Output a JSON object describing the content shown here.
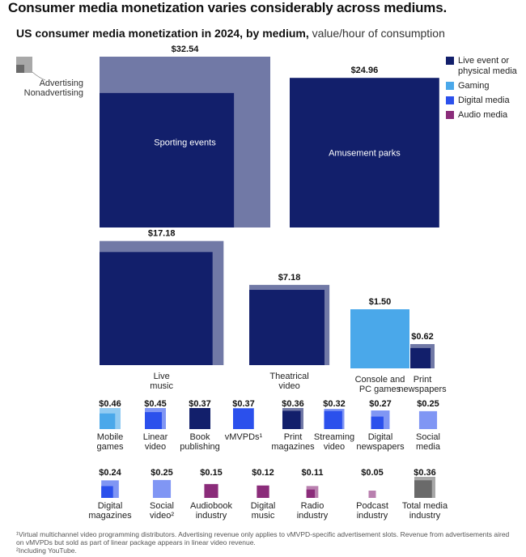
{
  "title": "Consumer media monetization varies considerably across mediums.",
  "subtitle_bold": "US consumer media monetization in 2024, by medium,",
  "subtitle_normal": "value/hour of consumption",
  "colors": {
    "live_event": "#121f6b",
    "gaming": "#4aa8ea",
    "digital_media": "#2b50ec",
    "audio_media": "#8b2c7a",
    "advertising_overlay_opacity": 0.6,
    "key_outer": "#a8a8a8",
    "key_inner": "#6a6a6a"
  },
  "key": {
    "advertising": "Advertising",
    "nonadvertising": "Nonadvertising"
  },
  "legend": [
    {
      "label": "Live event or physical media",
      "color": "#121f6b"
    },
    {
      "label": "Gaming",
      "color": "#4aa8ea"
    },
    {
      "label": "Digital media",
      "color": "#2b50ec"
    },
    {
      "label": "Audio media",
      "color": "#8b2c7a"
    }
  ],
  "chart_data": {
    "type": "proportional-area",
    "unit": "value/hour of consumption",
    "items": [
      {
        "name": "Sporting events",
        "label_lines": [
          "Sporting events"
        ],
        "total": 32.54,
        "value_label": "$32.54",
        "category": "live_event",
        "nonadv_share": 0.62
      },
      {
        "name": "Amusement parks",
        "label_lines": [
          "Amusement parks"
        ],
        "total": 24.96,
        "value_label": "$24.96",
        "category": "live_event",
        "nonadv_share": 1.0
      },
      {
        "name": "Live music",
        "label_lines": [
          "Live",
          "music"
        ],
        "total": 17.18,
        "value_label": "$17.18",
        "category": "live_event",
        "nonadv_share": 0.83
      },
      {
        "name": "Theatrical video",
        "label_lines": [
          "Theatrical",
          "video"
        ],
        "total": 7.18,
        "value_label": "$7.18",
        "category": "live_event",
        "nonadv_share": 0.88
      },
      {
        "name": "Console and PC games",
        "label_lines": [
          "Console and",
          "PC games"
        ],
        "total": 1.5,
        "value_label": "$1.50",
        "category": "gaming",
        "nonadv_share": 1.0
      },
      {
        "name": "Print newspapers",
        "label_lines": [
          "Print",
          "newspapers"
        ],
        "total": 0.62,
        "value_label": "$0.62",
        "category": "live_event",
        "nonadv_share": 0.7
      },
      {
        "name": "Mobile games",
        "label_lines": [
          "Mobile",
          "games"
        ],
        "total": 0.46,
        "value_label": "$0.46",
        "category": "gaming",
        "nonadv_share": 0.55
      },
      {
        "name": "Linear video",
        "label_lines": [
          "Linear",
          "video"
        ],
        "total": 0.45,
        "value_label": "$0.45",
        "category": "digital_media",
        "nonadv_share": 0.65
      },
      {
        "name": "Book publishing",
        "label_lines": [
          "Book",
          "publishing"
        ],
        "total": 0.37,
        "value_label": "$0.37",
        "category": "live_event",
        "nonadv_share": 1.0
      },
      {
        "name": "vMVPDs",
        "label_lines": [
          "vMVPDs¹"
        ],
        "total": 0.37,
        "value_label": "$0.37",
        "category": "digital_media",
        "nonadv_share": 0.95
      },
      {
        "name": "Print magazines",
        "label_lines": [
          "Print",
          "magazines"
        ],
        "total": 0.36,
        "value_label": "$0.36",
        "category": "live_event",
        "nonadv_share": 0.75
      },
      {
        "name": "Streaming video",
        "label_lines": [
          "Streaming",
          "video"
        ],
        "total": 0.32,
        "value_label": "$0.32",
        "category": "digital_media",
        "nonadv_share": 0.8
      },
      {
        "name": "Digital newspapers",
        "label_lines": [
          "Digital",
          "newspapers"
        ],
        "total": 0.27,
        "value_label": "$0.27",
        "category": "digital_media",
        "nonadv_share": 0.45
      },
      {
        "name": "Social media",
        "label_lines": [
          "Social",
          "media"
        ],
        "total": 0.25,
        "value_label": "$0.25",
        "category": "digital_media",
        "nonadv_share": 0.0
      },
      {
        "name": "Digital magazines",
        "label_lines": [
          "Digital",
          "magazines"
        ],
        "total": 0.24,
        "value_label": "$0.24",
        "category": "digital_media",
        "nonadv_share": 0.45
      },
      {
        "name": "Social video",
        "label_lines": [
          "Social",
          "video²"
        ],
        "total": 0.25,
        "value_label": "$0.25",
        "category": "digital_media",
        "nonadv_share": 0.0
      },
      {
        "name": "Audiobook industry",
        "label_lines": [
          "Audiobook",
          "industry"
        ],
        "total": 0.15,
        "value_label": "$0.15",
        "category": "audio_media",
        "nonadv_share": 1.0
      },
      {
        "name": "Digital music",
        "label_lines": [
          "Digital",
          "music"
        ],
        "total": 0.12,
        "value_label": "$0.12",
        "category": "audio_media",
        "nonadv_share": 1.0
      },
      {
        "name": "Radio industry",
        "label_lines": [
          "Radio",
          "industry"
        ],
        "total": 0.11,
        "value_label": "$0.11",
        "category": "audio_media",
        "nonadv_share": 0.5
      },
      {
        "name": "Podcast industry",
        "label_lines": [
          "Podcast",
          "industry"
        ],
        "total": 0.05,
        "value_label": "$0.05",
        "category": "audio_media",
        "nonadv_share": 0.0
      },
      {
        "name": "Total media industry",
        "label_lines": [
          "Total media",
          "industry"
        ],
        "total": 0.36,
        "value_label": "$0.36",
        "category": "total",
        "nonadv_share": 0.7
      }
    ]
  },
  "footnotes": [
    "¹Virtual multichannel video programming distributors. Advertising revenue only applies to vMVPD-specific advertisement slots. Revenue from advertisements aired on vMVPDs but sold as part of linear package appears in linear video revenue.",
    "²Including YouTube."
  ]
}
